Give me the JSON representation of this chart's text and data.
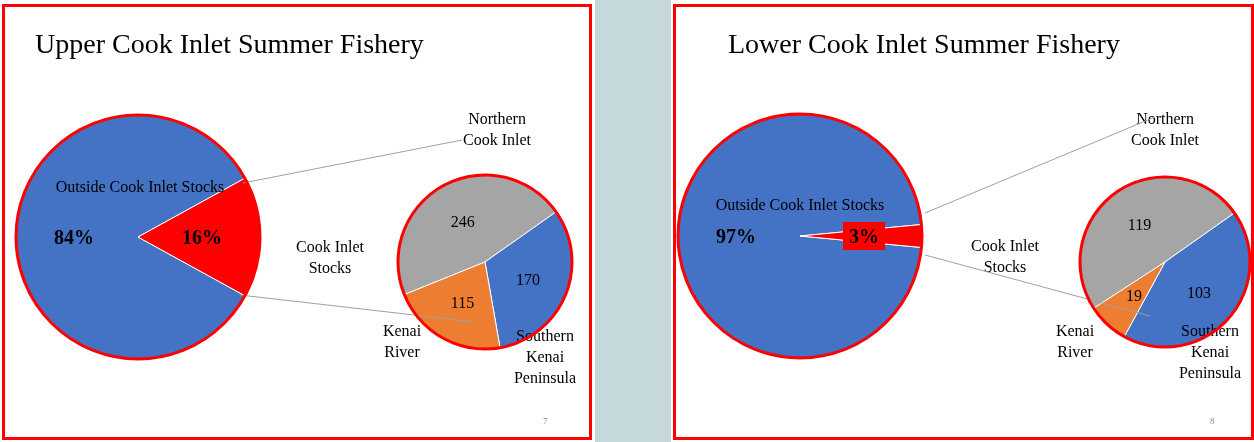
{
  "chart_data": [
    {
      "type": "pie",
      "title": "Upper Cook Inlet Summer Fishery",
      "categories": [
        "Outside Cook Inlet Stocks",
        "Cook Inlet Stocks"
      ],
      "values": [
        84,
        16
      ],
      "colors": [
        "#4472c4",
        "#ff0000"
      ],
      "value_labels": [
        "84%",
        "16%"
      ]
    },
    {
      "type": "pie",
      "categories": [
        "Northern Cook Inlet",
        "Southern Kenai Peninsula",
        "Kenai River"
      ],
      "values": [
        246,
        170,
        115
      ],
      "colors": [
        "#a5a5a5",
        "#4472c4",
        "#ed7d31"
      ],
      "data_labels": true,
      "annotations": [
        "7"
      ]
    },
    {
      "type": "pie",
      "title": "Lower Cook Inlet Summer Fishery",
      "categories": [
        "Outside Cook Inlet Stocks",
        "Cook Inlet Stocks"
      ],
      "values": [
        97,
        3
      ],
      "colors": [
        "#4472c4",
        "#ff0000"
      ],
      "value_labels": [
        "97%",
        "3%"
      ]
    },
    {
      "type": "pie",
      "categories": [
        "Northern Cook Inlet",
        "Southern Kenai Peninsula",
        "Kenai River"
      ],
      "values": [
        119,
        103,
        19
      ],
      "colors": [
        "#a5a5a5",
        "#4472c4",
        "#ed7d31"
      ],
      "data_labels": true,
      "annotations": [
        "8"
      ]
    }
  ]
}
